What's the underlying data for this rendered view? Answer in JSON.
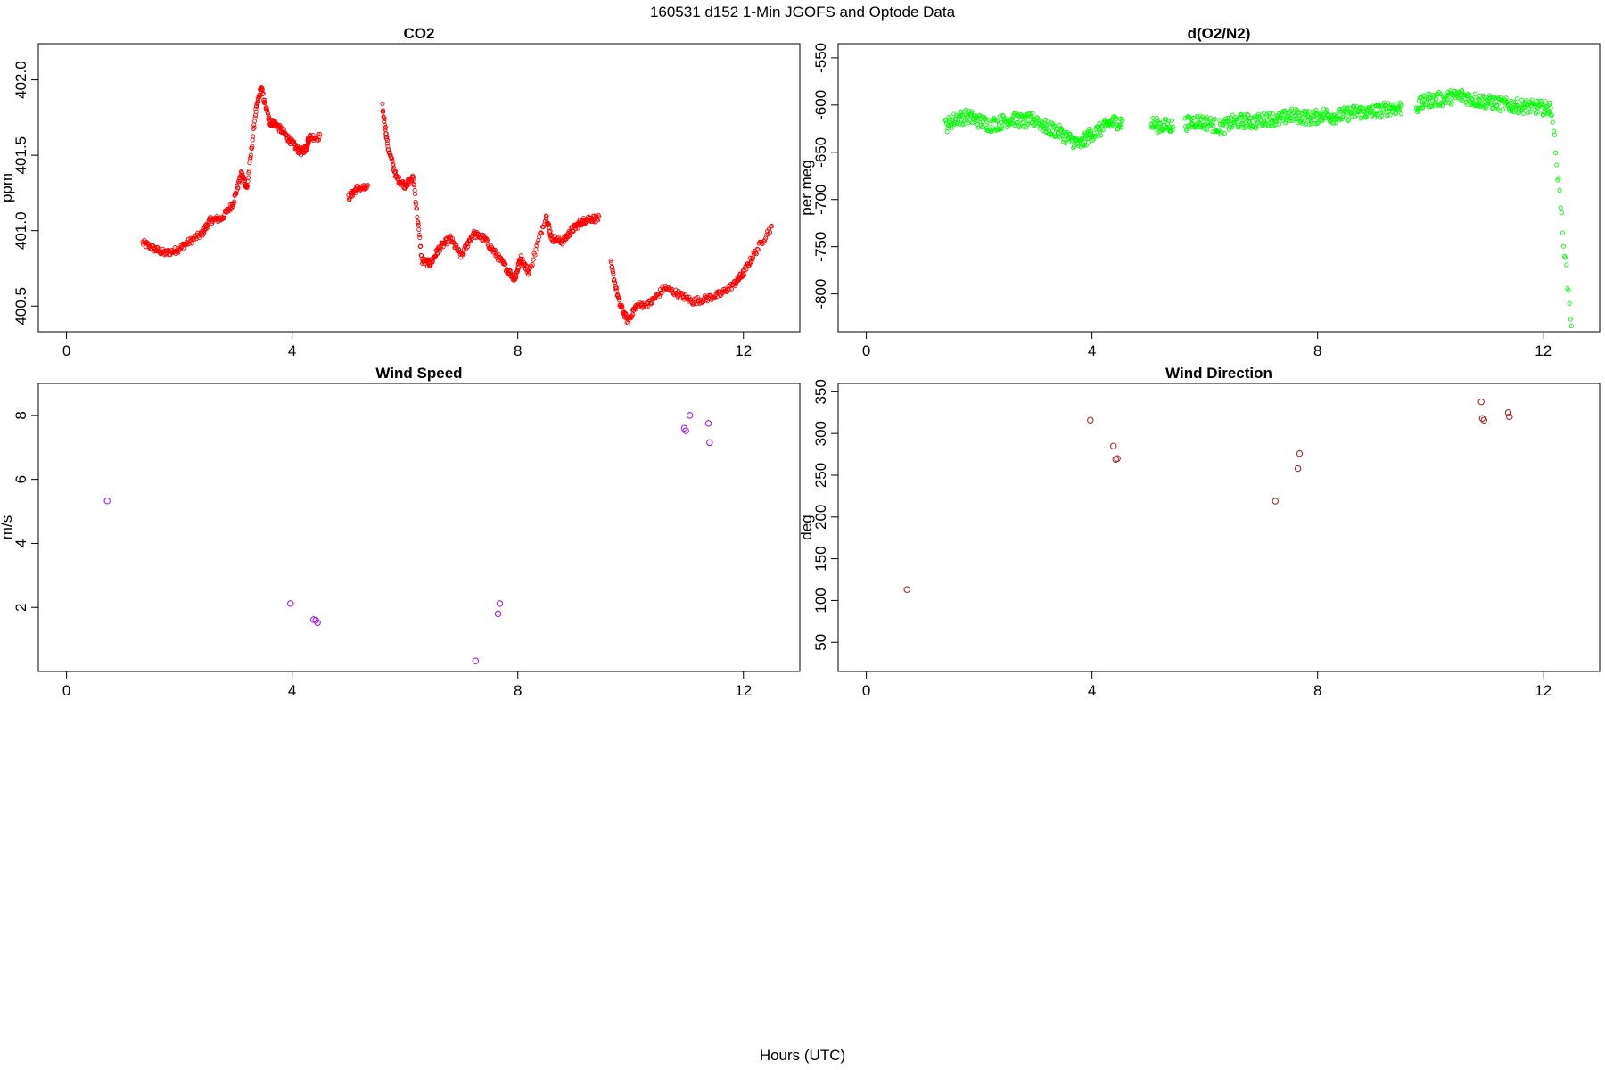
{
  "figure_title": "160531   d152   1-Min  JGOFS and Optode Data",
  "x_label": "Hours (UTC)",
  "colors": {
    "co2": "#ff0000",
    "o2n2": "#00ff00",
    "wind_speed": "#a020f0",
    "wind_direction": "#a52a2a"
  },
  "chart_data": [
    {
      "id": "co2",
      "type": "scatter",
      "title": "CO2",
      "xlabel": "",
      "ylabel": "ppm",
      "xlim": [
        -0.5,
        13.0
      ],
      "ylim": [
        400.33,
        402.24
      ],
      "xticks": [
        0,
        4,
        8,
        12
      ],
      "yticks": [
        400.5,
        401.0,
        401.5,
        402.0
      ],
      "ytick_labels": [
        "400.5",
        "401.0",
        "401.5",
        "402.0"
      ],
      "x": [
        1.35,
        1.55,
        1.75,
        1.95,
        2.15,
        2.4,
        2.55,
        2.75,
        2.95,
        3.1,
        3.2,
        3.35,
        3.45,
        3.6,
        3.7,
        3.85,
        4.0,
        4.15,
        4.25,
        4.3,
        5.0,
        5.15,
        5.6,
        5.7,
        5.85,
        6.0,
        6.15,
        6.3,
        6.45,
        6.6,
        6.8,
        7.0,
        7.2,
        7.4,
        7.6,
        7.8,
        7.95,
        8.05,
        8.2,
        8.5,
        8.6,
        8.8,
        8.95,
        9.1,
        9.25,
        9.65,
        9.8,
        9.95,
        10.1,
        10.35,
        10.6,
        10.85,
        11.1,
        11.35,
        11.6,
        11.85,
        12.0,
        12.2,
        12.5
      ],
      "y": [
        400.92,
        400.88,
        400.85,
        400.87,
        400.92,
        400.98,
        401.07,
        401.08,
        401.18,
        401.38,
        401.28,
        401.78,
        401.95,
        401.72,
        401.71,
        401.65,
        401.58,
        401.52,
        401.55,
        401.62,
        401.22,
        401.28,
        401.82,
        401.55,
        401.35,
        401.3,
        401.35,
        400.8,
        400.78,
        400.88,
        400.95,
        400.83,
        400.98,
        400.95,
        400.85,
        400.75,
        400.68,
        400.82,
        400.72,
        401.1,
        400.95,
        400.93,
        401.0,
        401.05,
        401.08,
        400.78,
        400.52,
        400.4,
        400.5,
        400.52,
        400.62,
        400.58,
        400.53,
        400.55,
        400.58,
        400.65,
        400.72,
        400.85,
        401.03
      ],
      "n": [
        20,
        20,
        20,
        20,
        20,
        20,
        20,
        20,
        20,
        20,
        20,
        20,
        20,
        20,
        20,
        20,
        20,
        20,
        20,
        20,
        20,
        20,
        20,
        20,
        20,
        20,
        20,
        20,
        20,
        20,
        20,
        20,
        20,
        20,
        20,
        20,
        20,
        20,
        20,
        20,
        20,
        20,
        20,
        20,
        20,
        20,
        20,
        20,
        20,
        20,
        20,
        20,
        20,
        20,
        20,
        20,
        20,
        20,
        1
      ]
    },
    {
      "id": "o2n2",
      "type": "scatter",
      "title": "d(O2/N2)",
      "xlabel": "",
      "ylabel": "per meg",
      "xlim": [
        -0.5,
        13.0
      ],
      "ylim": [
        -840,
        -535
      ],
      "xticks": [
        0,
        4,
        8,
        12
      ],
      "yticks": [
        -800,
        -750,
        -700,
        -650,
        -600,
        -550
      ],
      "ytick_labels": [
        "-800",
        "-750",
        "-700",
        "-650",
        "-600",
        "-550"
      ],
      "x": [
        1.4,
        1.6,
        1.8,
        2.0,
        2.2,
        2.4,
        2.6,
        2.8,
        3.0,
        3.2,
        3.4,
        3.6,
        3.8,
        3.95,
        4.15,
        4.35,
        5.05,
        5.25,
        5.65,
        5.85,
        6.05,
        6.3,
        6.5,
        6.7,
        6.9,
        7.1,
        7.3,
        7.5,
        7.7,
        7.9,
        8.1,
        8.3,
        8.5,
        8.7,
        8.9,
        9.1,
        9.3,
        9.75,
        9.95,
        10.15,
        10.35,
        10.55,
        10.75,
        10.95,
        11.15,
        11.35,
        11.55,
        11.75,
        11.95,
        12.15,
        12.5
      ],
      "y": [
        -622,
        -614,
        -612,
        -617,
        -621,
        -618,
        -614,
        -618,
        -615,
        -624,
        -628,
        -636,
        -642,
        -632,
        -626,
        -618,
        -620,
        -622,
        -620,
        -617,
        -619,
        -624,
        -618,
        -617,
        -618,
        -614,
        -616,
        -611,
        -612,
        -614,
        -610,
        -612,
        -610,
        -607,
        -608,
        -606,
        -603,
        -602,
        -595,
        -594,
        -592,
        -590,
        -594,
        -596,
        -598,
        -600,
        -601,
        -602,
        -603,
        -604,
        -834
      ],
      "n": [
        20,
        20,
        20,
        20,
        20,
        20,
        20,
        20,
        20,
        20,
        20,
        20,
        20,
        20,
        20,
        20,
        20,
        20,
        20,
        20,
        20,
        20,
        20,
        20,
        20,
        20,
        20,
        20,
        20,
        20,
        20,
        20,
        20,
        20,
        20,
        20,
        20,
        20,
        20,
        20,
        20,
        20,
        20,
        20,
        20,
        20,
        20,
        20,
        20,
        20,
        1
      ]
    },
    {
      "id": "wind_speed",
      "type": "scatter",
      "title": "Wind Speed",
      "xlabel": "",
      "ylabel": "m/s",
      "xlim": [
        -0.5,
        13.0
      ],
      "ylim": [
        0.0,
        9.0
      ],
      "xticks": [
        0,
        4,
        8,
        12
      ],
      "yticks": [
        2,
        4,
        6,
        8
      ],
      "ytick_labels": [
        "2",
        "4",
        "6",
        "8"
      ],
      "x": [
        0.72,
        3.97,
        4.38,
        4.42,
        4.45,
        7.25,
        7.65,
        7.68,
        10.95,
        10.98,
        11.05,
        11.38,
        11.4
      ],
      "y": [
        5.33,
        2.12,
        1.62,
        1.6,
        1.52,
        0.33,
        1.8,
        2.12,
        7.6,
        7.52,
        8.0,
        7.75,
        7.15
      ]
    },
    {
      "id": "wind_direction",
      "type": "scatter",
      "title": "Wind Direction",
      "xlabel": "",
      "ylabel": "deg",
      "xlim": [
        -0.5,
        13.0
      ],
      "ylim": [
        15,
        360
      ],
      "xticks": [
        0,
        4,
        8,
        12
      ],
      "yticks": [
        50,
        100,
        150,
        200,
        250,
        300,
        350
      ],
      "ytick_labels": [
        "50",
        "100",
        "150",
        "200",
        "250",
        "300",
        "350"
      ],
      "x": [
        0.72,
        3.97,
        4.38,
        4.42,
        4.45,
        7.25,
        7.65,
        7.68,
        10.9,
        10.92,
        10.95,
        11.38,
        11.4
      ],
      "y": [
        113,
        316,
        285,
        269,
        270,
        219,
        258,
        276,
        338,
        318,
        316,
        325,
        320
      ]
    }
  ]
}
